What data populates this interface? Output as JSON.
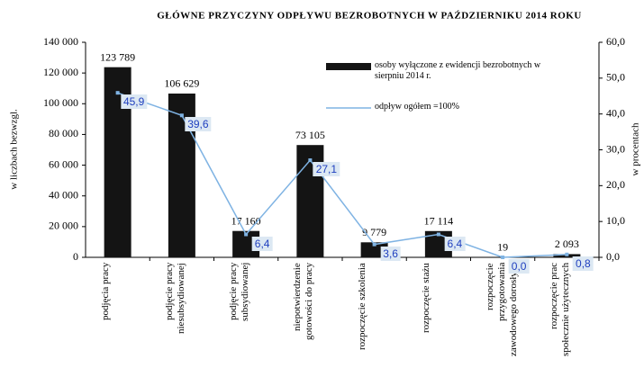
{
  "chart_data": {
    "type": "bar_line",
    "title": "GŁÓWNE PRZYCZYNY ODPŁYWU BEZROBOTNYCH W PAŹDZIERNIKU 2014 ROKU",
    "ylabel": "w liczbach bezwzgl.",
    "y2label": "w procentach",
    "categories": [
      "podjęcia pracy",
      "podjęcie pracy niesubsydiowanej",
      "podjęcie pracy subsydiowanej",
      "niepotwierdzenie gotowości do pracy",
      "rozpoczęcie szkolenia",
      "rozpoczęcie stażu",
      "rozpoczęcie przygotowania zawodowego dorosłych",
      "rozpoczęcie prac społecznie użytecznych"
    ],
    "series": [
      {
        "name": "osoby wyłączone z ewidencji bezrobotnych w sierpniu 2014 r.",
        "type": "bar",
        "color": "#141414",
        "values": [
          123789,
          106629,
          17160,
          73105,
          9779,
          17114,
          19,
          2093
        ],
        "value_labels": [
          "123 789",
          "106 629",
          "17 160",
          "73 105",
          "9 779",
          "17 114",
          "19",
          "2 093"
        ]
      },
      {
        "name": "odpływ ogółem =100%",
        "type": "line",
        "axis": "y2",
        "color": "#7fb3e3",
        "values": [
          45.9,
          39.6,
          6.4,
          27.1,
          3.6,
          6.4,
          0.0,
          0.8
        ],
        "value_labels": [
          "45,9",
          "39,6",
          "6,4",
          "27,1",
          "3,6",
          "6,4",
          "0,0",
          "0,8"
        ]
      }
    ],
    "ylim": [
      0,
      140000
    ],
    "yticks": [
      0,
      {
        "value": 20000,
        "label": "20 000"
      },
      {
        "value": 40000,
        "label": "40 000"
      },
      {
        "value": 60000,
        "label": "60 000"
      },
      {
        "value": 80000,
        "label": "80 000"
      },
      {
        "value": 100000,
        "label": "100 000"
      },
      {
        "value": 120000,
        "label": "120 000"
      },
      {
        "value": 140000,
        "label": "140 000"
      }
    ],
    "y2lim": [
      0,
      60
    ],
    "y2ticks": [
      {
        "value": 0,
        "label": "0,0"
      },
      {
        "value": 10,
        "label": "10,0"
      },
      {
        "value": 20,
        "label": "20,0"
      },
      {
        "value": 30,
        "label": "30,0"
      },
      {
        "value": 40,
        "label": "40,0"
      },
      {
        "value": 50,
        "label": "50,0"
      },
      {
        "value": 60,
        "label": "60,0"
      }
    ]
  }
}
